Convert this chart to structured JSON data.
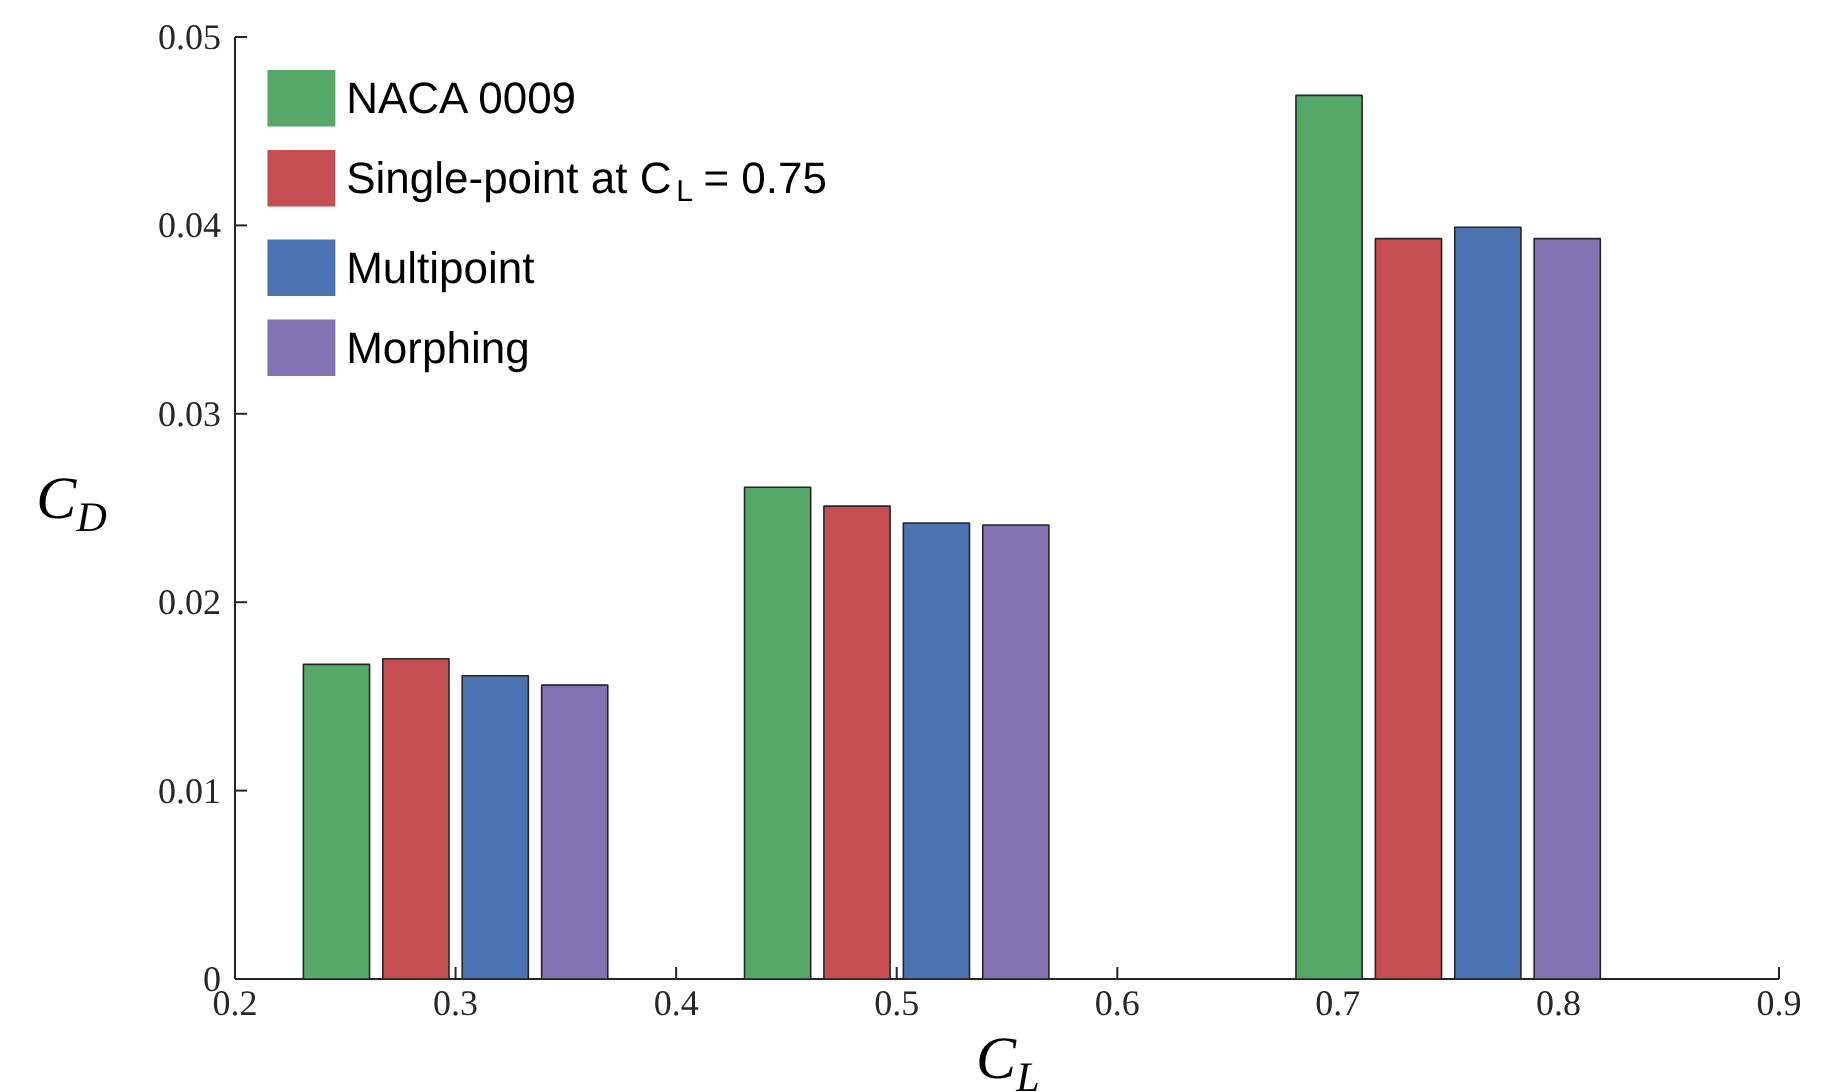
{
  "chart_data": {
    "type": "bar",
    "xlabel": "C$_{L}$",
    "ylabel": "C$_{D}$",
    "x": [
      0.3,
      0.5,
      0.75
    ],
    "series": [
      {
        "name": "NACA 0009",
        "color": "#55a868",
        "values": [
          0.0167,
          0.0261,
          0.0469
        ]
      },
      {
        "name": "Single-point at C$_{L}$ = 0.75",
        "color": "#c44e52",
        "values": [
          0.017,
          0.0251,
          0.0393
        ]
      },
      {
        "name": "Multipoint",
        "color": "#4c72b0",
        "values": [
          0.0161,
          0.0242,
          0.0399
        ]
      },
      {
        "name": "Morphing",
        "color": "#8172b2",
        "values": [
          0.0156,
          0.0241,
          0.0393
        ]
      }
    ],
    "xlim": [
      0.2,
      0.9
    ],
    "xticks": [
      0.2,
      0.3,
      0.4,
      0.5,
      0.6,
      0.7,
      0.8,
      0.9
    ],
    "ylim": [
      0,
      0.05
    ],
    "yticks": [
      0,
      0.01,
      0.02,
      0.03,
      0.04,
      0.05
    ],
    "grid": false,
    "legend": "top left"
  }
}
